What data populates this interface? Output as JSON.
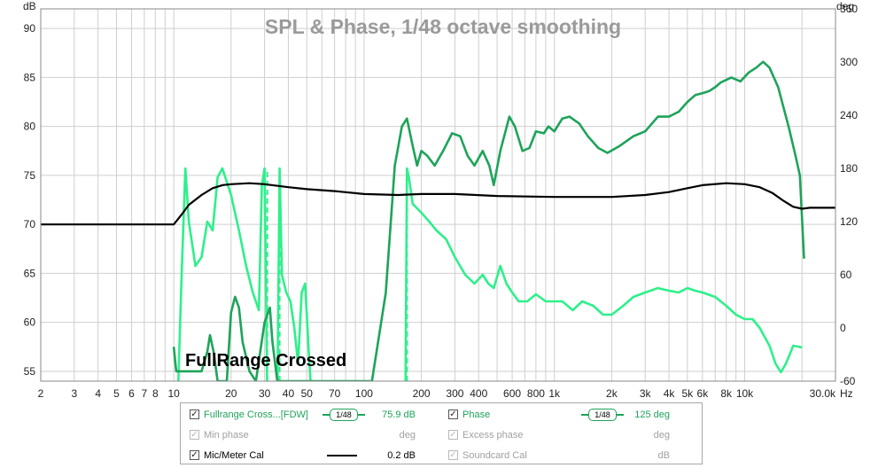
{
  "chart_data": {
    "type": "line",
    "title": "SPL & Phase, 1/48 octave smoothing",
    "xlabel": "Hz",
    "ylabel_left": "dB",
    "ylabel_right": "deg",
    "x_scale": "log",
    "xlim": [
      2,
      30000
    ],
    "ylim_left": [
      54,
      92
    ],
    "ylim_right": [
      -60,
      360
    ],
    "x_ticks": [
      2,
      3,
      4,
      5,
      6,
      7,
      8,
      10,
      20,
      30,
      40,
      50,
      70,
      100,
      200,
      300,
      400,
      600,
      800,
      1000,
      2000,
      3000,
      4000,
      5000,
      6000,
      8000,
      10000,
      30000
    ],
    "x_tick_labels": [
      "2",
      "3",
      "4",
      "5",
      "6",
      "7",
      "8",
      "10",
      "20",
      "30",
      "40",
      "50",
      "70",
      "100",
      "200",
      "300",
      "400",
      "600",
      "800",
      "1k",
      "2k",
      "3k",
      "4k",
      "5k",
      "6k",
      "8k",
      "10k",
      "30.0k"
    ],
    "y_ticks_left": [
      55,
      60,
      65,
      70,
      75,
      80,
      85,
      90
    ],
    "y_ticks_right": [
      -60,
      0,
      60,
      120,
      180,
      240,
      300,
      360
    ],
    "grid": true,
    "annotation": "FullRange Crossed",
    "series": [
      {
        "name": "Fullrange Cross...[FDW]",
        "axis": "left",
        "color": "#1ea35a",
        "points": [
          [
            10,
            57.5
          ],
          [
            10.3,
            55
          ],
          [
            14,
            55
          ],
          [
            15,
            57
          ],
          [
            15.5,
            58.7
          ],
          [
            16.2,
            57
          ],
          [
            17,
            54
          ],
          [
            19,
            54
          ],
          [
            20,
            61
          ],
          [
            21,
            62.6
          ],
          [
            22,
            61.5
          ],
          [
            23,
            58
          ],
          [
            25,
            55
          ],
          [
            27,
            54
          ],
          [
            30,
            60
          ],
          [
            32,
            61.5
          ],
          [
            33,
            58
          ],
          [
            35,
            54
          ],
          [
            110,
            54
          ],
          [
            130,
            63
          ],
          [
            145,
            76
          ],
          [
            158,
            80
          ],
          [
            168,
            80.8
          ],
          [
            180,
            78
          ],
          [
            190,
            76
          ],
          [
            200,
            77.5
          ],
          [
            215,
            77
          ],
          [
            235,
            76
          ],
          [
            260,
            77.5
          ],
          [
            290,
            79.3
          ],
          [
            320,
            79
          ],
          [
            350,
            77
          ],
          [
            380,
            76
          ],
          [
            420,
            77.5
          ],
          [
            455,
            76
          ],
          [
            480,
            74
          ],
          [
            520,
            77.5
          ],
          [
            580,
            81
          ],
          [
            620,
            80
          ],
          [
            680,
            77.5
          ],
          [
            740,
            77.8
          ],
          [
            800,
            79.5
          ],
          [
            880,
            79.3
          ],
          [
            930,
            80
          ],
          [
            1000,
            79.5
          ],
          [
            1100,
            80.8
          ],
          [
            1200,
            81
          ],
          [
            1350,
            80.3
          ],
          [
            1500,
            79
          ],
          [
            1700,
            77.8
          ],
          [
            1900,
            77.3
          ],
          [
            2200,
            78
          ],
          [
            2600,
            79
          ],
          [
            3000,
            79.5
          ],
          [
            3500,
            81
          ],
          [
            4000,
            81
          ],
          [
            4500,
            81.5
          ],
          [
            5000,
            82.5
          ],
          [
            5500,
            83.2
          ],
          [
            6000,
            83.4
          ],
          [
            6500,
            83.6
          ],
          [
            7000,
            84
          ],
          [
            7500,
            84.5
          ],
          [
            8500,
            85
          ],
          [
            9500,
            84.6
          ],
          [
            10500,
            85.5
          ],
          [
            11500,
            86
          ],
          [
            12500,
            86.6
          ],
          [
            13500,
            86
          ],
          [
            15000,
            84
          ],
          [
            17000,
            80
          ],
          [
            18500,
            77
          ],
          [
            19500,
            75
          ],
          [
            20500,
            66.5
          ]
        ]
      },
      {
        "name": "Phase",
        "axis": "right",
        "color": "#2ef08a",
        "points": [
          [
            10,
            -80
          ],
          [
            10.5,
            -80
          ],
          [
            11,
            60
          ],
          [
            11.5,
            180
          ],
          [
            12,
            120
          ],
          [
            13,
            70
          ],
          [
            14,
            80
          ],
          [
            15,
            120
          ],
          [
            16,
            110
          ],
          [
            17,
            170
          ],
          [
            18,
            180
          ],
          [
            20,
            150
          ],
          [
            22,
            110
          ],
          [
            24,
            70
          ],
          [
            26,
            40
          ],
          [
            28,
            20
          ],
          [
            29,
            160
          ],
          [
            30,
            180
          ],
          [
            31,
            -80
          ],
          [
            35,
            -80
          ],
          [
            36,
            180
          ],
          [
            37,
            60
          ],
          [
            39,
            40
          ],
          [
            41,
            30
          ],
          [
            43,
            0
          ],
          [
            45,
            -40
          ],
          [
            47,
            40
          ],
          [
            49,
            50
          ],
          [
            51,
            -20
          ],
          [
            53,
            -80
          ],
          [
            165,
            -80
          ],
          [
            168,
            180
          ],
          [
            172,
            170
          ],
          [
            180,
            140
          ],
          [
            200,
            130
          ],
          [
            220,
            120
          ],
          [
            240,
            110
          ],
          [
            270,
            100
          ],
          [
            300,
            80
          ],
          [
            340,
            60
          ],
          [
            380,
            50
          ],
          [
            420,
            60
          ],
          [
            450,
            50
          ],
          [
            480,
            45
          ],
          [
            520,
            70
          ],
          [
            560,
            50
          ],
          [
            600,
            40
          ],
          [
            650,
            30
          ],
          [
            720,
            30
          ],
          [
            800,
            38
          ],
          [
            900,
            30
          ],
          [
            1000,
            30
          ],
          [
            1100,
            30
          ],
          [
            1250,
            20
          ],
          [
            1400,
            30
          ],
          [
            1600,
            25
          ],
          [
            1800,
            15
          ],
          [
            2000,
            15
          ],
          [
            2300,
            25
          ],
          [
            2600,
            35
          ],
          [
            3000,
            40
          ],
          [
            3500,
            45
          ],
          [
            4000,
            42
          ],
          [
            4500,
            40
          ],
          [
            5000,
            45
          ],
          [
            5500,
            42
          ],
          [
            6000,
            40
          ],
          [
            7000,
            35
          ],
          [
            8000,
            25
          ],
          [
            9000,
            15
          ],
          [
            10000,
            10
          ],
          [
            11000,
            10
          ],
          [
            12000,
            0
          ],
          [
            13500,
            -20
          ],
          [
            14500,
            -40
          ],
          [
            15500,
            -50
          ],
          [
            16500,
            -40
          ],
          [
            18000,
            -20
          ],
          [
            20000,
            -22
          ]
        ]
      },
      {
        "name": "Mic/Meter Cal",
        "axis": "left",
        "color": "#000000",
        "points": [
          [
            2,
            70
          ],
          [
            10,
            70
          ],
          [
            11,
            71
          ],
          [
            12,
            72
          ],
          [
            14,
            73
          ],
          [
            16,
            73.7
          ],
          [
            18,
            74
          ],
          [
            20,
            74.1
          ],
          [
            25,
            74.2
          ],
          [
            30,
            74.1
          ],
          [
            40,
            73.8
          ],
          [
            50,
            73.6
          ],
          [
            70,
            73.4
          ],
          [
            100,
            73.1
          ],
          [
            150,
            73
          ],
          [
            200,
            73.1
          ],
          [
            300,
            73.1
          ],
          [
            500,
            72.9
          ],
          [
            1000,
            72.8
          ],
          [
            2000,
            72.8
          ],
          [
            3000,
            73
          ],
          [
            4000,
            73.3
          ],
          [
            5000,
            73.7
          ],
          [
            6000,
            74
          ],
          [
            8000,
            74.2
          ],
          [
            10000,
            74.1
          ],
          [
            12000,
            73.8
          ],
          [
            14000,
            73.2
          ],
          [
            16000,
            72.4
          ],
          [
            18000,
            71.8
          ],
          [
            20000,
            71.6
          ],
          [
            22000,
            71.7
          ],
          [
            30000,
            71.7
          ]
        ]
      }
    ]
  },
  "legend": {
    "rows": [
      {
        "label": "Fullrange Cross...[FDW]",
        "checked": "✓",
        "smoothing": "1/48",
        "value": "75.9 dB"
      },
      {
        "label": "Min phase",
        "checked": "✓",
        "value": "deg"
      },
      {
        "label": "Mic/Meter Cal",
        "checked": "✓",
        "value": "0.2 dB"
      },
      {
        "label": "Phase",
        "checked": "✓",
        "smoothing": "1/48",
        "value": "125 deg"
      },
      {
        "label": "Excess phase",
        "checked": "✓",
        "value": "deg"
      },
      {
        "label": "Soundcard Cal",
        "checked": "✓",
        "value": "dB"
      }
    ]
  }
}
